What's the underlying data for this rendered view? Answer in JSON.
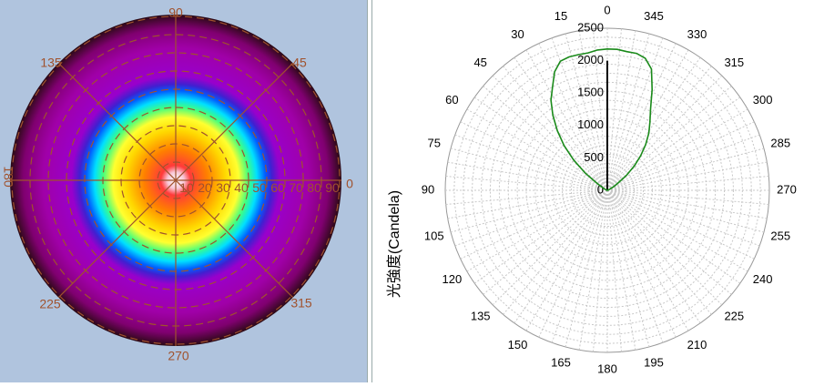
{
  "colors": {
    "left_bg": "#b0c4de",
    "ring_lines": "#a0522d",
    "curve": "#1a8a1a",
    "grid": "#c8c8c8"
  },
  "chart_data": [
    {
      "type": "heatmap",
      "subtype": "polar-intensity-map",
      "angle_labels": [
        "90",
        "135",
        "45",
        "180",
        "0",
        "225",
        "315",
        "270"
      ],
      "radial_labels": [
        "10",
        "20",
        "30",
        "40",
        "50",
        "60",
        "70",
        "80",
        "90"
      ],
      "grid": true,
      "legend": "none"
    },
    {
      "type": "line",
      "subtype": "polar",
      "ylabel": "光強度(Candela)",
      "radial_ticks": [
        "0",
        "500",
        "1000",
        "1500",
        "2000",
        "2500"
      ],
      "r_range": [
        0,
        2500
      ],
      "angle_ticks": [
        "0",
        "15",
        "30",
        "45",
        "60",
        "75",
        "90",
        "105",
        "120",
        "135",
        "150",
        "165",
        "180",
        "195",
        "210",
        "225",
        "240",
        "255",
        "270",
        "285",
        "300",
        "315",
        "330",
        "345"
      ],
      "grid": true,
      "series": [
        {
          "angles": [
            0,
            4,
            8,
            12,
            16,
            20,
            24,
            28,
            32,
            36,
            40,
            44,
            48,
            52,
            56,
            60,
            64,
            68,
            72,
            76,
            80,
            84,
            88,
            92,
            268,
            272,
            276,
            280,
            284,
            288,
            292,
            296,
            300,
            304,
            308,
            312,
            316,
            320,
            324,
            328,
            332,
            336,
            340,
            344,
            348,
            352,
            356
          ],
          "values": [
            2180,
            2170,
            2140,
            2140,
            2140,
            2120,
            2000,
            1800,
            1640,
            1430,
            1200,
            960,
            700,
            430,
            190,
            90,
            45,
            25,
            15,
            8,
            5,
            3,
            2,
            0,
            0,
            2,
            3,
            5,
            10,
            18,
            30,
            60,
            110,
            200,
            380,
            560,
            740,
            920,
            1090,
            1240,
            1420,
            1700,
            1990,
            2120,
            2160,
            2160,
            2180
          ]
        }
      ]
    }
  ]
}
